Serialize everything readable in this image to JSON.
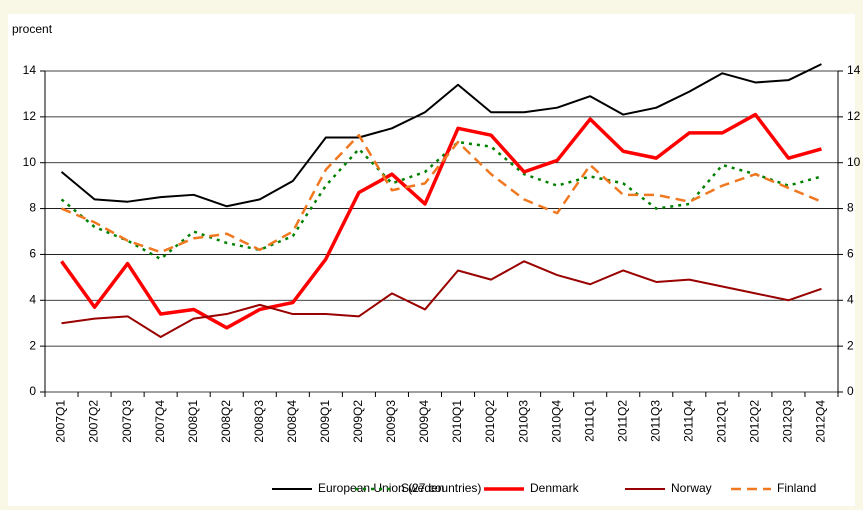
{
  "chart_data": {
    "type": "line",
    "y_label": "procent",
    "categories": [
      "2007Q1",
      "2007Q2",
      "2007Q3",
      "2007Q4",
      "2008Q1",
      "2008Q2",
      "2008Q3",
      "2008Q4",
      "2009Q1",
      "2009Q2",
      "2009Q3",
      "2009Q4",
      "2010Q1",
      "2010Q2",
      "2010Q3",
      "2010Q4",
      "2011Q1",
      "2011Q2",
      "2011Q3",
      "2011Q4",
      "2012Q1",
      "2012Q2",
      "2012Q3",
      "2012Q4"
    ],
    "series": [
      {
        "name": "European Union (27 countries)",
        "color": "#000000",
        "style": "solid",
        "values": [
          9.6,
          8.4,
          8.3,
          8.5,
          8.6,
          8.1,
          8.4,
          9.2,
          11.1,
          11.1,
          11.5,
          12.2,
          13.4,
          12.2,
          12.2,
          12.4,
          12.9,
          12.1,
          12.4,
          13.1,
          13.9,
          13.5,
          13.6,
          14.3
        ]
      },
      {
        "name": "Sweden",
        "color": "#008000",
        "style": "dotted",
        "values": [
          8.4,
          7.2,
          6.6,
          5.8,
          7.0,
          6.5,
          6.2,
          6.8,
          9.0,
          10.6,
          9.1,
          9.6,
          10.9,
          10.7,
          9.5,
          9.0,
          9.4,
          9.1,
          8.0,
          8.2,
          9.9,
          9.5,
          9.0,
          9.4
        ]
      },
      {
        "name": "Denmark",
        "color": "#ff0000",
        "style": "bold",
        "values": [
          5.7,
          3.7,
          5.6,
          3.4,
          3.6,
          2.8,
          3.6,
          3.9,
          5.8,
          8.7,
          9.5,
          8.2,
          11.5,
          11.2,
          9.6,
          10.1,
          11.9,
          10.5,
          10.2,
          11.3,
          11.3,
          12.1,
          10.2,
          10.6
        ]
      },
      {
        "name": "Norway",
        "color": "#990000",
        "style": "solid",
        "values": [
          3.0,
          3.2,
          3.3,
          2.4,
          3.2,
          3.4,
          3.8,
          3.4,
          3.4,
          3.3,
          4.3,
          3.6,
          5.3,
          4.9,
          5.7,
          5.1,
          4.7,
          5.3,
          4.8,
          4.9,
          4.6,
          4.3,
          4.0,
          4.5
        ]
      },
      {
        "name": "Finland",
        "color": "#f07820",
        "style": "dashed",
        "values": [
          8.0,
          7.4,
          6.6,
          6.1,
          6.7,
          6.9,
          6.2,
          7.0,
          9.7,
          11.2,
          8.8,
          9.1,
          10.9,
          9.5,
          8.4,
          7.8,
          9.9,
          8.6,
          8.6,
          8.3,
          9.0,
          9.5,
          8.9,
          8.3
        ]
      }
    ],
    "ylim": [
      0,
      14
    ],
    "yticks": [
      0,
      2,
      4,
      6,
      8,
      10,
      12,
      14
    ],
    "y2lim": [
      0,
      14
    ],
    "y2ticks": [
      0,
      2,
      4,
      6,
      8,
      10,
      12,
      14
    ],
    "grid": true,
    "legend": "bottom"
  }
}
